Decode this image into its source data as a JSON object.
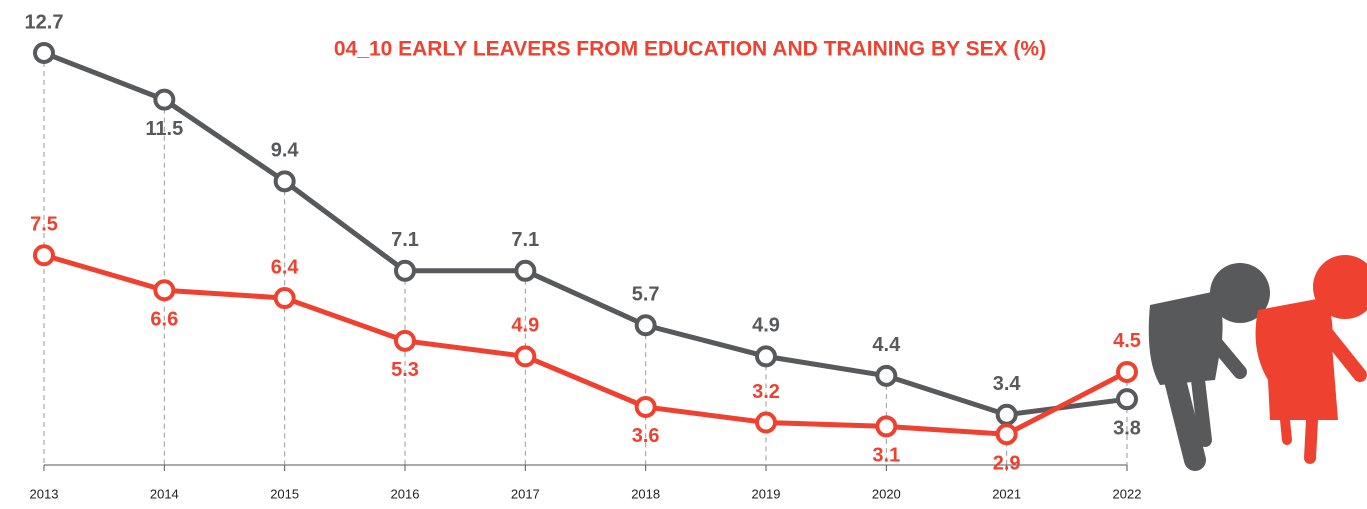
{
  "chart_data": {
    "type": "line",
    "title": "04_10 EARLY LEAVERS FROM EDUCATION AND TRAINING BY SEX (%)",
    "categories": [
      "2013",
      "2014",
      "2015",
      "2016",
      "2017",
      "2018",
      "2019",
      "2020",
      "2021",
      "2022"
    ],
    "series": [
      {
        "color": "#58595b",
        "values": [
          12.7,
          11.5,
          9.4,
          7.1,
          7.1,
          5.7,
          4.9,
          4.4,
          3.4,
          3.8
        ]
      },
      {
        "color": "#ef4130",
        "values": [
          7.5,
          6.6,
          6.4,
          5.3,
          4.9,
          3.6,
          3.2,
          3.1,
          2.9,
          4.5
        ]
      }
    ]
  }
}
